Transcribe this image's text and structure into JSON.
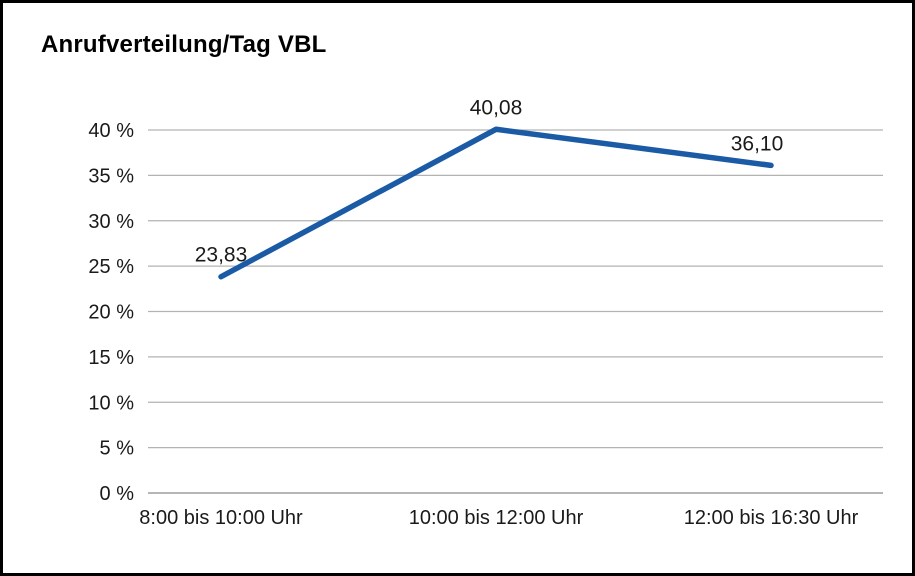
{
  "page": {
    "title": "Anrufverteilung/Tag VBL"
  },
  "chart_data": {
    "type": "line",
    "title": "Anrufverteilung/Tag VBL",
    "categories": [
      "8:00 bis 10:00 Uhr",
      "10:00 bis 12:00 Uhr",
      "12:00 bis 16:30 Uhr"
    ],
    "values": [
      23.83,
      40.08,
      36.1
    ],
    "data_labels": [
      "23,83",
      "40,08",
      "36,10"
    ],
    "xlabel": "",
    "ylabel": "",
    "ylim": [
      0,
      40
    ],
    "ytick_step": 5,
    "ytick_labels": [
      "0 %",
      "5 %",
      "10 %",
      "15 %",
      "20 %",
      "25 %",
      "30 %",
      "35 %",
      "40 %"
    ],
    "grid": true,
    "legend": "none",
    "colors": {
      "line": "#1b5aa5",
      "grid": "#b3b3b3",
      "axis": "#8a8a8a",
      "text": "#1a1a1a",
      "border": "#000000",
      "background": "#ffffff"
    }
  }
}
